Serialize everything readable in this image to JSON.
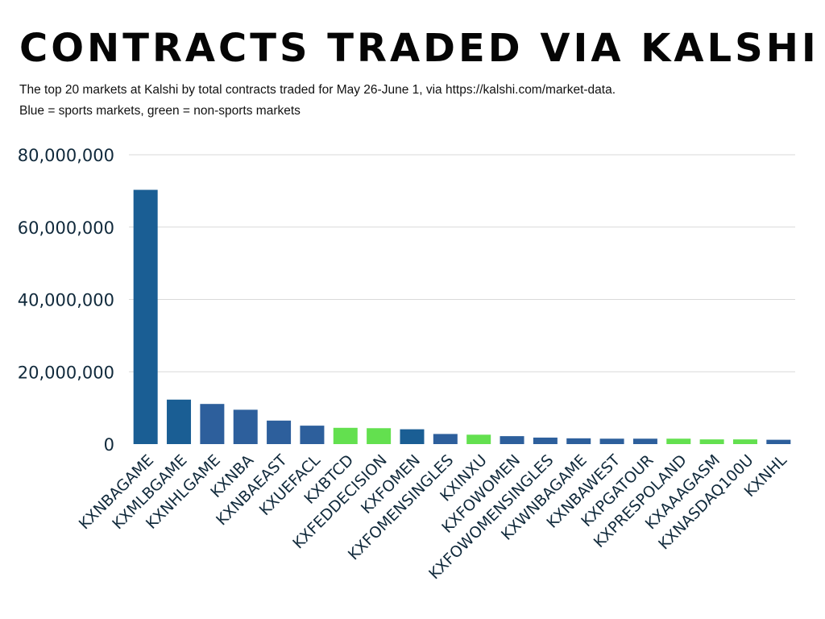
{
  "header": {
    "title": "Contracts traded via Kalshi",
    "subtitle_line1": "The top 20 markets at Kalshi by total contracts traded for May 26-June 1, via https://kalshi.com/market-data.",
    "subtitle_line2": "Blue = sports markets, green = non-sports markets"
  },
  "colors": {
    "sports_dark": "#1a5e94",
    "sports_mid": "#2d5f9c",
    "non_sports": "#63e04f",
    "grid": "#d9d9d9",
    "text": "#10293b"
  },
  "chart_data": {
    "type": "bar",
    "title": "Contracts traded via Kalshi",
    "xlabel": "",
    "ylabel": "",
    "ylim": [
      0,
      80000000
    ],
    "yticks": [
      "0",
      "20,000,000",
      "40,000,000",
      "60,000,000",
      "80,000,000"
    ],
    "ytick_values": [
      0,
      20000000,
      40000000,
      60000000,
      80000000
    ],
    "grid": true,
    "categories": [
      "KXNBAGAME",
      "KXMLBGAME",
      "KXNHLGAME",
      "KXNBA",
      "KXNBAEAST",
      "KXUEFACL",
      "KXBTCD",
      "KXFEDDECISION",
      "KXFOMEN",
      "KXFOMENSINGLES",
      "KXINXU",
      "KXFOWOMEN",
      "KXFOWOMENSINGLES",
      "KXWNBAGAME",
      "KXNBAWEST",
      "KXPGATOUR",
      "KXPRESPOLAND",
      "KXAAAGASM",
      "KXNASDAQ100U",
      "KXNHL"
    ],
    "values": [
      70300000,
      12300000,
      11100000,
      9500000,
      6500000,
      5100000,
      4500000,
      4400000,
      4100000,
      2800000,
      2600000,
      2200000,
      1800000,
      1600000,
      1500000,
      1500000,
      1500000,
      1300000,
      1300000,
      1200000
    ],
    "groups": [
      "sports",
      "sports",
      "sports",
      "sports",
      "sports",
      "sports",
      "non-sports",
      "non-sports",
      "sports",
      "sports",
      "non-sports",
      "sports",
      "sports",
      "sports",
      "sports",
      "sports",
      "non-sports",
      "non-sports",
      "non-sports",
      "sports"
    ],
    "bar_colors": [
      "#1a5e94",
      "#1a5e94",
      "#2d5f9c",
      "#2d5f9c",
      "#2d5f9c",
      "#2d5f9c",
      "#63e04f",
      "#63e04f",
      "#1a5e94",
      "#2d5f9c",
      "#63e04f",
      "#2d5f9c",
      "#2d5f9c",
      "#2d5f9c",
      "#2d5f9c",
      "#2d5f9c",
      "#63e04f",
      "#63e04f",
      "#63e04f",
      "#2d5f9c"
    ]
  }
}
